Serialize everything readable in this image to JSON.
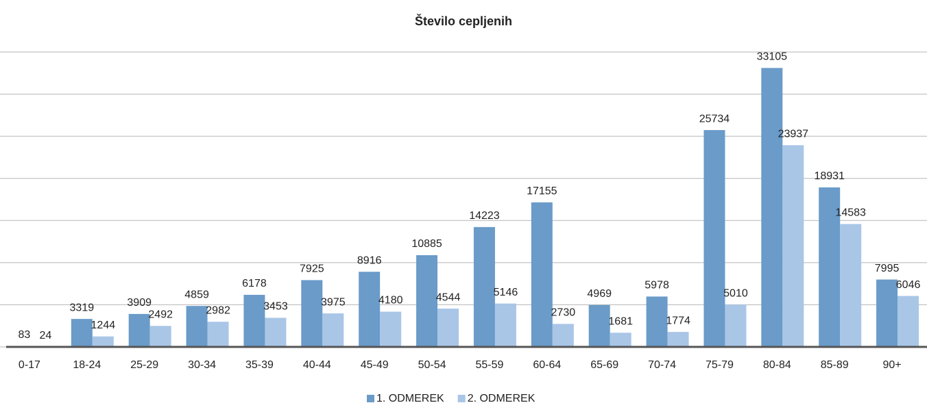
{
  "chart_data": {
    "type": "bar",
    "title": "Število cepljenih",
    "categories": [
      "0-17",
      "18-24",
      "25-29",
      "30-34",
      "35-39",
      "40-44",
      "45-49",
      "50-54",
      "55-59",
      "60-64",
      "65-69",
      "70-74",
      "75-79",
      "80-84",
      "85-89",
      "90+"
    ],
    "series": [
      {
        "name": "1. ODMEREK",
        "color": "#6a9bc9",
        "values": [
          83,
          3319,
          3909,
          4859,
          6178,
          7925,
          8916,
          10885,
          14223,
          17155,
          4969,
          5978,
          25734,
          33105,
          18931,
          7995
        ]
      },
      {
        "name": "2. ODMEREK",
        "color": "#a9c6e7",
        "values": [
          24,
          1244,
          2492,
          2982,
          3453,
          3975,
          4180,
          4544,
          5146,
          2730,
          1681,
          1774,
          5010,
          23937,
          14583,
          6046
        ]
      }
    ],
    "ylim": [
      0,
      35000
    ],
    "yticks": [
      0,
      5000,
      10000,
      15000,
      20000,
      25000,
      30000,
      35000
    ],
    "grid": true,
    "legend": "bottom"
  }
}
